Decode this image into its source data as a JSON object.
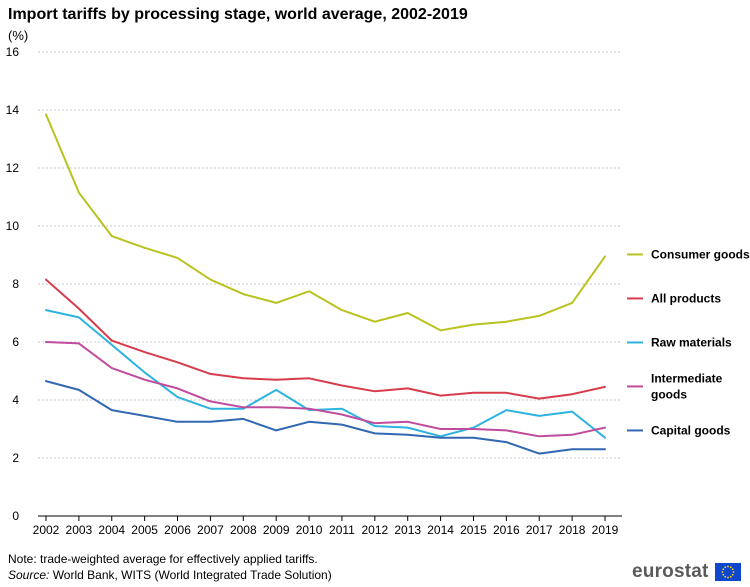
{
  "title": "Import tariffs by processing stage, world average, 2002-2019",
  "unit": "(%)",
  "note": "Note: trade-weighted average for effectively applied tariffs.",
  "source_label": "Source:",
  "source_text": " World Bank, WITS (World Integrated Trade Solution)",
  "brand": "eurostat",
  "chart_data": {
    "type": "line",
    "title": "Import tariffs by processing stage, world average, 2002-2019",
    "ylabel": "(%)",
    "xlabel": "",
    "ylim": [
      0,
      16
    ],
    "yticks": [
      0,
      2,
      4,
      6,
      8,
      10,
      12,
      14,
      16
    ],
    "grid": true,
    "legend": "right",
    "categories": [
      "2002",
      "2003",
      "2004",
      "2005",
      "2006",
      "2007",
      "2008",
      "2009",
      "2010",
      "2011",
      "2012",
      "2013",
      "2014",
      "2015",
      "2016",
      "2017",
      "2018",
      "2019"
    ],
    "series": [
      {
        "name": "Consumer goods",
        "color": "#b9c320",
        "values": [
          13.85,
          11.15,
          9.65,
          9.25,
          8.9,
          8.15,
          7.65,
          7.35,
          7.75,
          7.1,
          6.7,
          7.0,
          6.4,
          6.6,
          6.7,
          6.9,
          7.35,
          8.95
        ]
      },
      {
        "name": "All products",
        "color": "#d73c4c",
        "values": [
          8.15,
          7.15,
          6.05,
          5.65,
          5.3,
          4.9,
          4.75,
          4.7,
          4.75,
          4.5,
          4.3,
          4.4,
          4.15,
          4.25,
          4.25,
          4.05,
          4.2,
          4.45
        ]
      },
      {
        "name": "Raw materials",
        "color": "#2cb3e0",
        "values": [
          7.1,
          6.85,
          5.9,
          4.95,
          4.1,
          3.7,
          3.7,
          4.35,
          3.65,
          3.7,
          3.1,
          3.05,
          2.75,
          3.05,
          3.65,
          3.45,
          3.6,
          2.7
        ]
      },
      {
        "name": "Intermediate goods",
        "color": "#c04c9e",
        "values": [
          6.0,
          5.95,
          5.1,
          4.7,
          4.4,
          3.95,
          3.75,
          3.75,
          3.7,
          3.5,
          3.2,
          3.25,
          3.0,
          3.0,
          2.95,
          2.75,
          2.8,
          3.05
        ]
      },
      {
        "name": "Capital goods",
        "color": "#3068b2",
        "values": [
          4.65,
          4.35,
          3.65,
          3.45,
          3.25,
          3.25,
          3.35,
          2.95,
          3.25,
          3.15,
          2.85,
          2.8,
          2.7,
          2.7,
          2.55,
          2.15,
          2.3,
          2.3
        ]
      }
    ],
    "legend_labels": [
      {
        "series": "Consumer goods",
        "lines": [
          "Consumer goods"
        ]
      },
      {
        "series": "All products",
        "lines": [
          "All products"
        ]
      },
      {
        "series": "Raw materials",
        "lines": [
          "Raw materials"
        ]
      },
      {
        "series": "Intermediate goods",
        "lines": [
          "Intermediate",
          "goods"
        ]
      },
      {
        "series": "Capital goods",
        "lines": [
          "Capital goods"
        ]
      }
    ]
  }
}
